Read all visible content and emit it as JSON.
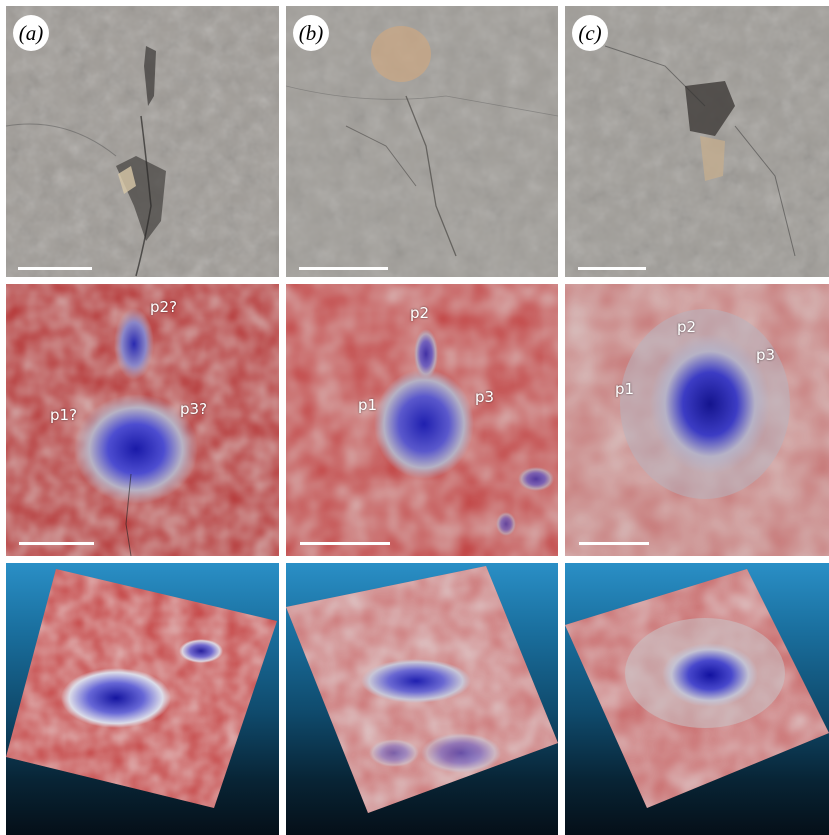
{
  "panels": {
    "a": {
      "letter": "(a)",
      "labels": [
        "p1?",
        "p2?",
        "p3?"
      ]
    },
    "b": {
      "letter": "(b)",
      "labels": [
        "p1",
        "p2",
        "p3"
      ]
    },
    "c": {
      "letter": "(c)",
      "labels": [
        "p1",
        "p2",
        "p3"
      ]
    }
  },
  "colors": {
    "rock": "#9e9b96",
    "depth_low": "#c03a3a",
    "depth_high": "#2a2ab8",
    "sky": "#2a8fc6"
  }
}
